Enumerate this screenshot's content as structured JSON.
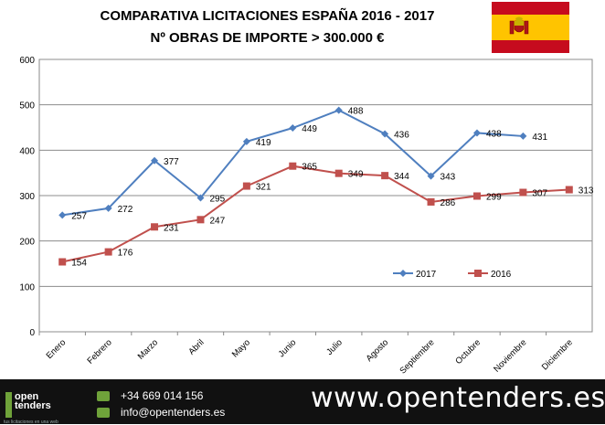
{
  "chart_data": {
    "type": "line",
    "title_line1": "COMPARATIVA LICITACIONES ESPAÑA 2016 - 2017",
    "title_line2": "Nº OBRAS DE IMPORTE > 300.000 €",
    "categories": [
      "Enero",
      "Febrero",
      "Marzo",
      "Abril",
      "Mayo",
      "Junio",
      "Julio",
      "Agosto",
      "Septiembre",
      "Octubre",
      "Noviembre",
      "Diciembre"
    ],
    "ylim": [
      0,
      600
    ],
    "yticks": [
      0,
      100,
      200,
      300,
      400,
      500,
      600
    ],
    "grid": true,
    "legend_position": "bottom-right",
    "series": [
      {
        "name": "2017",
        "color": "#4f7fbf",
        "marker": "diamond",
        "values": [
          257,
          272,
          377,
          295,
          419,
          449,
          488,
          436,
          343,
          438,
          431,
          null
        ]
      },
      {
        "name": "2016",
        "color": "#c0504d",
        "marker": "square",
        "values": [
          154,
          176,
          231,
          247,
          321,
          365,
          349,
          344,
          286,
          299,
          307,
          313
        ]
      }
    ]
  },
  "footer": {
    "logo_text_line1": "open",
    "logo_text_line2": "tenders",
    "logo_sub": "tus licitaciones en una web",
    "phone": "+34 669 014 156",
    "email": "info@opentenders.es",
    "website": "www.opentenders.es",
    "accent": "#6fa23a"
  },
  "flag": {
    "colors": [
      "#c60b1e",
      "#ffc400"
    ]
  }
}
